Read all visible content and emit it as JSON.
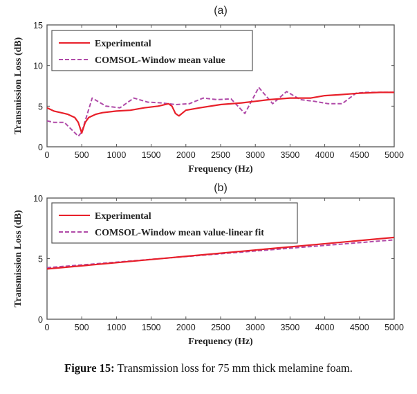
{
  "caption": {
    "label": "Figure 15:",
    "text": " Transmission loss for 75 mm thick melamine foam."
  },
  "colors": {
    "experimental": "#e8202a",
    "comsol": "#b04aa8",
    "axis": "#555555"
  },
  "chart_data": [
    {
      "type": "line",
      "panel_title": "(a)",
      "title": "(a)",
      "xlabel": "Frequency (Hz)",
      "ylabel": "Transmission Loss (dB)",
      "xlim": [
        0,
        5000
      ],
      "ylim": [
        0,
        15
      ],
      "xticks": [
        0,
        500,
        1000,
        1500,
        2000,
        2500,
        3000,
        3500,
        4000,
        4500,
        5000
      ],
      "yticks": [
        0,
        5,
        10,
        15
      ],
      "grid": false,
      "legend_position": "top-left",
      "series": [
        {
          "name": "Experimental",
          "style": "solid",
          "x": [
            0,
            100,
            200,
            300,
            400,
            450,
            500,
            550,
            600,
            700,
            800,
            1000,
            1200,
            1400,
            1600,
            1750,
            1800,
            1850,
            1900,
            2000,
            2200,
            2500,
            2800,
            3000,
            3200,
            3500,
            3800,
            4000,
            4200,
            4500,
            4800,
            5000
          ],
          "y": [
            4.8,
            4.4,
            4.2,
            4.0,
            3.6,
            3.0,
            1.7,
            3.0,
            3.6,
            4.0,
            4.2,
            4.4,
            4.5,
            4.8,
            5.0,
            5.3,
            5.0,
            4.1,
            3.8,
            4.5,
            4.8,
            5.2,
            5.4,
            5.6,
            5.8,
            6.0,
            6.0,
            6.3,
            6.4,
            6.6,
            6.7,
            6.7
          ]
        },
        {
          "name": "COMSOL-Window mean value",
          "style": "dashed",
          "x": [
            0,
            100,
            250,
            450,
            500,
            650,
            850,
            1050,
            1250,
            1450,
            1650,
            1850,
            2050,
            2250,
            2450,
            2650,
            2850,
            3050,
            3250,
            3450,
            3650,
            3850,
            4050,
            4250,
            4450,
            4600,
            4800,
            5000
          ],
          "y": [
            3.2,
            3.0,
            3.0,
            1.3,
            1.8,
            6.0,
            5.0,
            4.8,
            6.0,
            5.5,
            5.4,
            5.2,
            5.3,
            6.0,
            5.8,
            5.9,
            4.1,
            7.3,
            5.3,
            6.8,
            5.8,
            5.6,
            5.3,
            5.3,
            6.6,
            6.7,
            6.7,
            6.7
          ]
        }
      ]
    },
    {
      "type": "line",
      "panel_title": "(b)",
      "title": "(b)",
      "xlabel": "Frequency (Hz)",
      "ylabel": "Transmission Loss (dB)",
      "xlim": [
        0,
        5000
      ],
      "ylim": [
        0,
        10
      ],
      "xticks": [
        0,
        500,
        1000,
        1500,
        2000,
        2500,
        3000,
        3500,
        4000,
        4500,
        5000
      ],
      "yticks": [
        0,
        5,
        10
      ],
      "grid": false,
      "legend_position": "top-left",
      "series": [
        {
          "name": "Experimental",
          "style": "solid",
          "x": [
            0,
            5000
          ],
          "y": [
            4.15,
            6.75
          ]
        },
        {
          "name": "COMSOL-Window mean value-linear fit",
          "style": "dashed",
          "x": [
            0,
            5000
          ],
          "y": [
            4.25,
            6.55
          ]
        }
      ]
    }
  ]
}
